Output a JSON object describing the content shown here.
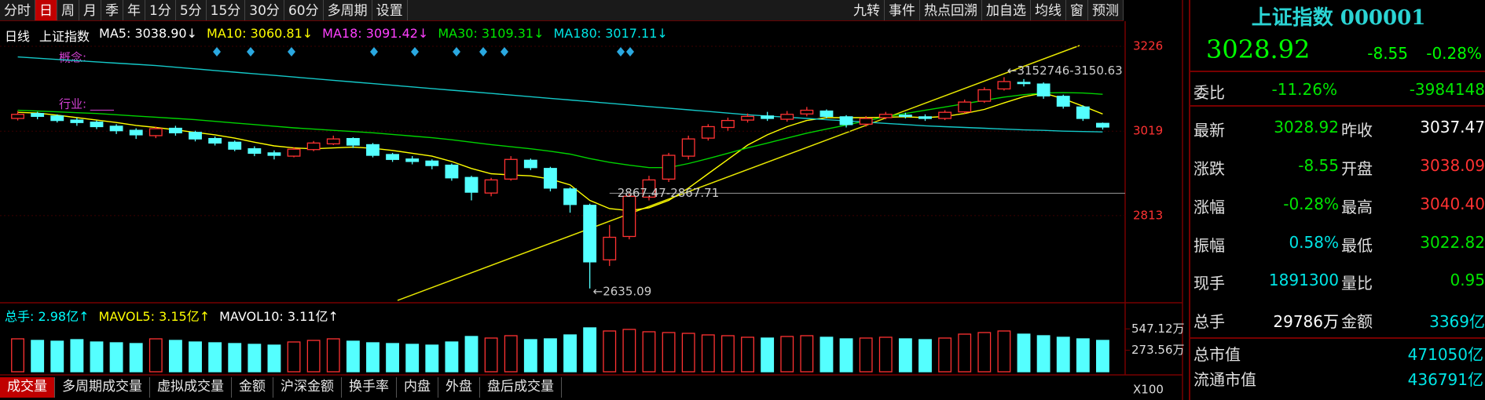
{
  "toolbar": {
    "left": [
      "分时",
      "日",
      "周",
      "月",
      "季",
      "年",
      "1分",
      "5分",
      "15分",
      "30分",
      "60分",
      "多周期",
      "设置"
    ],
    "right": [
      "九转",
      "事件",
      "热点回溯",
      "加自选",
      "均线",
      "窗",
      "预测"
    ],
    "active": "日"
  },
  "chart_data": {
    "type": "candlestick",
    "period": "日线",
    "title": "上证指数",
    "ma_labels": [
      {
        "text": "MA5: 3038.90↓",
        "color": "#ffffff"
      },
      {
        "text": "MA10: 3060.81↓",
        "color": "#ffff00"
      },
      {
        "text": "MA18: 3091.42↓",
        "color": "#ff40ff"
      },
      {
        "text": "MA30: 3109.31↓",
        "color": "#00e600"
      },
      {
        "text": "MA180: 3017.11↓",
        "color": "#00e5e5"
      }
    ],
    "concept_label": "概念:",
    "industry_label": "行业: ____",
    "candles": [
      [
        3050,
        3060,
        3068,
        3045
      ],
      [
        3062,
        3055,
        3066,
        3048
      ],
      [
        3056,
        3045,
        3060,
        3040
      ],
      [
        3046,
        3040,
        3052,
        3032
      ],
      [
        3041,
        3030,
        3045,
        3024
      ],
      [
        3031,
        3020,
        3036,
        3012
      ],
      [
        3021,
        3010,
        3026,
        3000
      ],
      [
        3008,
        3025,
        3030,
        3002
      ],
      [
        3026,
        3015,
        3032,
        3008
      ],
      [
        3016,
        3000,
        3020,
        2994
      ],
      [
        3001,
        2990,
        3006,
        2984
      ],
      [
        2992,
        2975,
        2996,
        2970
      ],
      [
        2976,
        2965,
        2982,
        2958
      ],
      [
        2966,
        2960,
        2972,
        2950
      ],
      [
        2958,
        2975,
        2980,
        2955
      ],
      [
        2974,
        2990,
        2995,
        2970
      ],
      [
        2988,
        3000,
        3008,
        2985
      ],
      [
        3001,
        2985,
        3004,
        2978
      ],
      [
        2986,
        2960,
        2990,
        2955
      ],
      [
        2962,
        2950,
        2966,
        2944
      ],
      [
        2951,
        2945,
        2958,
        2938
      ],
      [
        2946,
        2935,
        2950,
        2926
      ],
      [
        2936,
        2905,
        2940,
        2898
      ],
      [
        2906,
        2870,
        2910,
        2850
      ],
      [
        2868,
        2900,
        2905,
        2860
      ],
      [
        2902,
        2950,
        2958,
        2898
      ],
      [
        2948,
        2930,
        2952,
        2924
      ],
      [
        2928,
        2880,
        2932,
        2872
      ],
      [
        2878,
        2840,
        2882,
        2820
      ],
      [
        2838,
        2700,
        2842,
        2635.09
      ],
      [
        2705,
        2760,
        2790,
        2690
      ],
      [
        2762,
        2860,
        2866,
        2755
      ],
      [
        2858,
        2900,
        2910,
        2850
      ],
      [
        2902,
        2960,
        2966,
        2895
      ],
      [
        2958,
        3000,
        3008,
        2950
      ],
      [
        3002,
        3030,
        3036,
        2996
      ],
      [
        3028,
        3045,
        3052,
        3020
      ],
      [
        3046,
        3055,
        3062,
        3040
      ],
      [
        3056,
        3050,
        3066,
        3044
      ],
      [
        3048,
        3060,
        3068,
        3042
      ],
      [
        3061,
        3070,
        3078,
        3055
      ],
      [
        3068,
        3055,
        3072,
        3050
      ],
      [
        3054,
        3035,
        3058,
        3028
      ],
      [
        3036,
        3050,
        3056,
        3030
      ],
      [
        3052,
        3060,
        3066,
        3048
      ],
      [
        3058,
        3055,
        3064,
        3050
      ],
      [
        3054,
        3050,
        3060,
        3044
      ],
      [
        3050,
        3065,
        3070,
        3046
      ],
      [
        3066,
        3090,
        3096,
        3062
      ],
      [
        3092,
        3120,
        3126,
        3088
      ],
      [
        3122,
        3140,
        3150.63,
        3118
      ],
      [
        3138,
        3135,
        3146,
        3128
      ],
      [
        3134,
        3105,
        3138,
        3098
      ],
      [
        3104,
        3080,
        3108,
        3074
      ],
      [
        3078,
        3050,
        3082,
        3044
      ],
      [
        3038,
        3029,
        3040,
        3023
      ]
    ],
    "ma_lines": [
      {
        "color": "#ffff00",
        "values": [
          3065,
          3063,
          3058,
          3052,
          3046,
          3040,
          3033,
          3028,
          3022,
          3016,
          3010,
          3002,
          2992,
          2983,
          2978,
          2976,
          2978,
          2980,
          2977,
          2972,
          2965,
          2958,
          2945,
          2928,
          2915,
          2912,
          2910,
          2902,
          2888,
          2850,
          2830,
          2825,
          2832,
          2850,
          2880,
          2915,
          2950,
          2985,
          3010,
          3030,
          3045,
          3052,
          3052,
          3052,
          3053,
          3054,
          3052,
          3055,
          3062,
          3072,
          3088,
          3103,
          3112,
          3098,
          3080,
          3061
        ]
      },
      {
        "color": "#00d200",
        "values": [
          3070,
          3068,
          3066,
          3064,
          3062,
          3059,
          3056,
          3053,
          3050,
          3047,
          3043,
          3039,
          3035,
          3031,
          3027,
          3024,
          3021,
          3018,
          3015,
          3011,
          3007,
          3003,
          2998,
          2992,
          2986,
          2981,
          2976,
          2970,
          2963,
          2952,
          2943,
          2936,
          2930,
          2930,
          2940,
          2952,
          2965,
          2978,
          2990,
          3002,
          3014,
          3024,
          3034,
          3044,
          3054,
          3062,
          3070,
          3078,
          3086,
          3094,
          3102,
          3108,
          3112,
          3113,
          3112,
          3109
        ]
      },
      {
        "color": "#14c8c8",
        "values": [
          3200,
          3197,
          3194,
          3191,
          3188,
          3185,
          3182,
          3179,
          3175,
          3171,
          3167,
          3163,
          3159,
          3155,
          3151,
          3147,
          3143,
          3139,
          3135,
          3131,
          3127,
          3123,
          3119,
          3115,
          3111,
          3107,
          3103,
          3099,
          3095,
          3091,
          3087,
          3083,
          3079,
          3075,
          3071,
          3067,
          3063,
          3059,
          3056,
          3053,
          3050,
          3047,
          3044,
          3041,
          3038,
          3035,
          3032,
          3030,
          3028,
          3026,
          3024,
          3022,
          3021,
          3019,
          3018,
          3017.11
        ]
      }
    ],
    "annotations": [
      {
        "value": 2635.09,
        "label": "←2635.09",
        "style": "low"
      },
      {
        "value": 3150.63,
        "label": "←3152746-3150.63",
        "style": "high"
      },
      {
        "value": 2867.47,
        "label": "2867.47-2867.71",
        "style": "line"
      }
    ],
    "ylim": [
      2606,
      3228
    ],
    "yticks": [
      2813,
      3019,
      3226
    ],
    "grid": true,
    "up_color": "#ff3232",
    "down_color": "#54ffff"
  },
  "volume_chart": {
    "type": "bar",
    "labels": [
      {
        "text": "总手: 2.98亿↑",
        "color": "#00ffff"
      },
      {
        "text": "MAVOL5: 3.15亿↑",
        "color": "#ffff00"
      },
      {
        "text": "MAVOL10: 3.11亿↑",
        "color": "#ffffff"
      }
    ],
    "values": [
      420,
      400,
      390,
      410,
      380,
      370,
      360,
      420,
      400,
      380,
      370,
      360,
      350,
      340,
      380,
      400,
      420,
      390,
      370,
      360,
      350,
      340,
      380,
      450,
      430,
      460,
      410,
      420,
      470,
      560,
      520,
      540,
      510,
      500,
      490,
      470,
      460,
      440,
      430,
      450,
      460,
      440,
      420,
      430,
      440,
      420,
      410,
      430,
      480,
      500,
      520,
      480,
      460,
      440,
      420,
      400
    ],
    "ylim": [
      0,
      600
    ],
    "yticks": [
      {
        "value": 547.12,
        "label": "547.12万"
      },
      {
        "value": 273.56,
        "label": "273.56万"
      }
    ],
    "unit_label": "X100"
  },
  "tabs": {
    "items": [
      "成交量",
      "多周期成交量",
      "虚拟成交量",
      "金额",
      "沪深金额",
      "换手率",
      "内盘",
      "外盘",
      "盘后成交量"
    ],
    "active": "成交量"
  },
  "quote": {
    "title": "上证指数 000001",
    "price": {
      "text": "3028.92",
      "color": "#00ff00"
    },
    "change": {
      "text": "-8.55",
      "color": "#00ff00"
    },
    "pct": {
      "text": "-0.28%",
      "color": "#00ff00"
    },
    "rows": [
      {
        "cells": [
          {
            "text": "委比",
            "color": "#e0e0e0"
          },
          {
            "text": "-11.26%",
            "color": "#00e600"
          },
          {
            "text": "-3984148",
            "color": "#00e600"
          }
        ]
      },
      {
        "cells": [
          {
            "text": "最新",
            "color": "#e0e0e0"
          },
          {
            "text": "3028.92",
            "color": "#00e600"
          },
          {
            "text": "昨收",
            "color": "#e0e0e0"
          },
          {
            "text": "3037.47",
            "color": "#ffffff"
          }
        ]
      },
      {
        "cells": [
          {
            "text": "涨跌",
            "color": "#e0e0e0"
          },
          {
            "text": "-8.55",
            "color": "#00e600"
          },
          {
            "text": "开盘",
            "color": "#e0e0e0"
          },
          {
            "text": "3038.09",
            "color": "#ff3232"
          }
        ]
      },
      {
        "cells": [
          {
            "text": "涨幅",
            "color": "#e0e0e0"
          },
          {
            "text": "-0.28%",
            "color": "#00e600"
          },
          {
            "text": "最高",
            "color": "#e0e0e0"
          },
          {
            "text": "3040.40",
            "color": "#ff3232"
          }
        ]
      },
      {
        "cells": [
          {
            "text": "振幅",
            "color": "#e0e0e0"
          },
          {
            "text": "0.58%",
            "color": "#00e5e5"
          },
          {
            "text": "最低",
            "color": "#e0e0e0"
          },
          {
            "text": "3022.82",
            "color": "#00e600"
          }
        ]
      },
      {
        "cells": [
          {
            "text": "现手",
            "color": "#e0e0e0"
          },
          {
            "text": "1891300",
            "color": "#00e5e5"
          },
          {
            "text": "量比",
            "color": "#e0e0e0"
          },
          {
            "text": "0.95",
            "color": "#00e600"
          }
        ]
      },
      {
        "cells": [
          {
            "text": "总手",
            "color": "#e0e0e0"
          },
          {
            "text": "29786万",
            "color": "#ffffff"
          },
          {
            "text": "金额",
            "color": "#e0e0e0"
          },
          {
            "text": "3369亿",
            "color": "#00e5e5"
          }
        ]
      },
      {
        "cells": [
          {
            "text": "总市值",
            "color": "#e0e0e0"
          },
          {
            "text": "471050亿",
            "color": "#00e5e5"
          }
        ]
      },
      {
        "cells": [
          {
            "text": "流通市值",
            "color": "#e0e0e0"
          },
          {
            "text": "436791亿",
            "color": "#00e5e5"
          }
        ]
      }
    ]
  }
}
